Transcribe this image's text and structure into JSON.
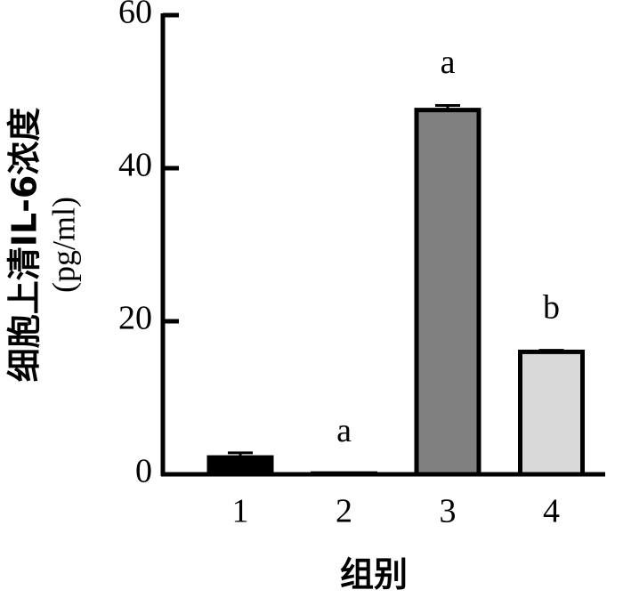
{
  "chart_data": {
    "type": "bar",
    "y_label": [
      "细胞上清IL-6浓度",
      "(pg/ml)"
    ],
    "x_label": "组别",
    "categories": [
      "1",
      "2",
      "3",
      "4"
    ],
    "values": [
      2.2,
      0.1,
      47.6,
      16.0
    ],
    "errors": [
      0.6,
      0,
      0.6,
      0.2
    ],
    "colors": [
      "#000000",
      "#000000",
      "#808080",
      "#d9d9d9"
    ],
    "annotations": [
      null,
      "a",
      "a",
      "b"
    ],
    "ylim": [
      0,
      60
    ],
    "yticks": [
      0,
      20,
      40,
      60
    ]
  }
}
